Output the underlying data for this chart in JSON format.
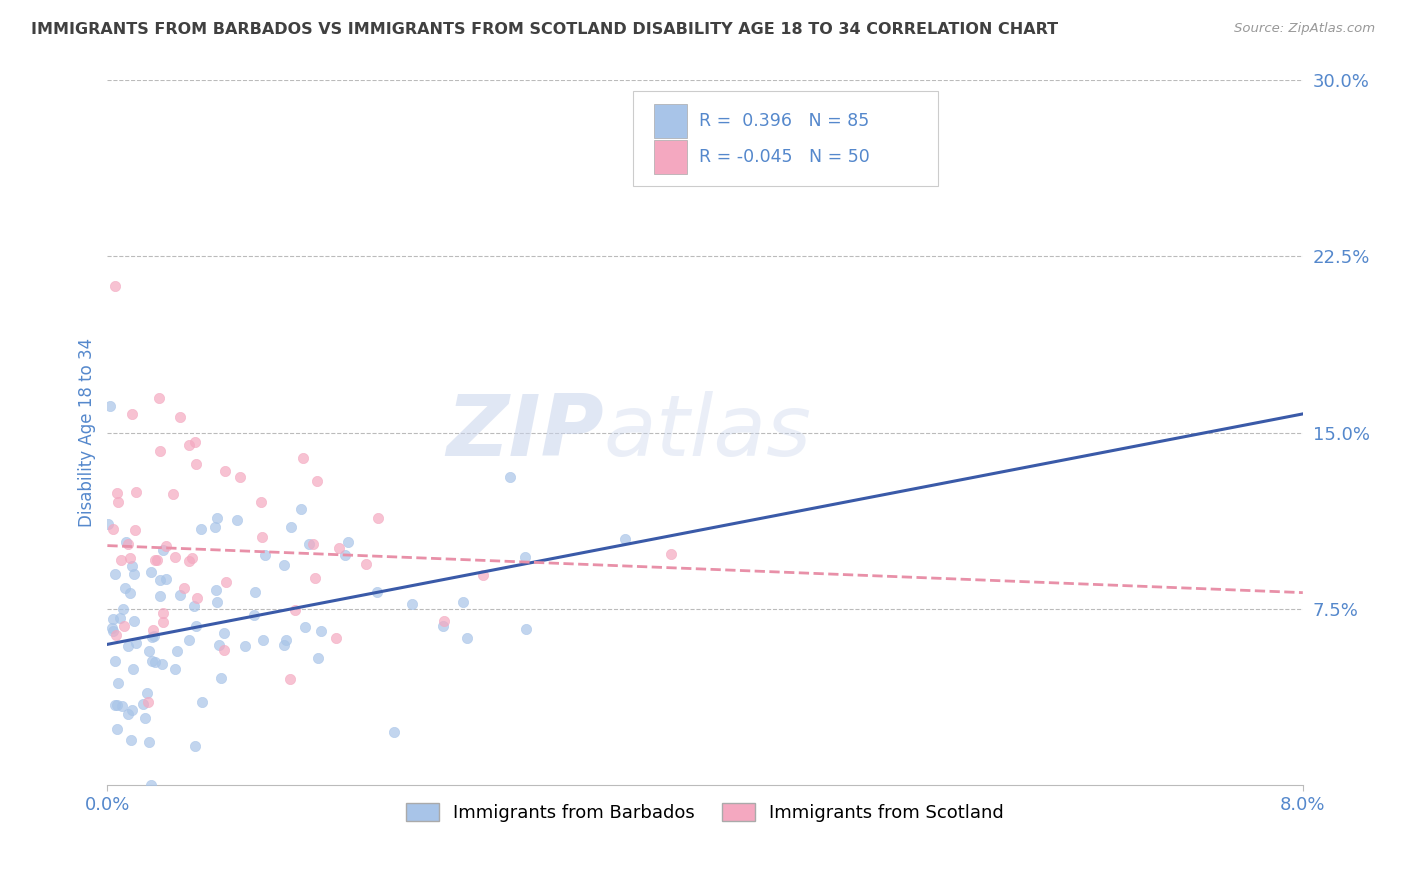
{
  "title": "IMMIGRANTS FROM BARBADOS VS IMMIGRANTS FROM SCOTLAND DISABILITY AGE 18 TO 34 CORRELATION CHART",
  "source": "Source: ZipAtlas.com",
  "ylabel": "Disability Age 18 to 34",
  "xmin": 0.0,
  "xmax": 0.08,
  "ymin": 0.0,
  "ymax": 0.3,
  "ytick_vals": [
    0.075,
    0.15,
    0.225,
    0.3
  ],
  "ytick_labels": [
    "7.5%",
    "15.0%",
    "22.5%",
    "30.0%"
  ],
  "xtick_vals": [
    0.0,
    0.08
  ],
  "xtick_labels": [
    "0.0%",
    "8.0%"
  ],
  "legend_label1": "Immigrants from Barbados",
  "legend_label2": "Immigrants from Scotland",
  "R1": 0.396,
  "N1": 85,
  "R2": -0.045,
  "N2": 50,
  "color_blue": "#A8C4E8",
  "color_pink": "#F4A8C0",
  "trend_color_blue": "#3A5AA8",
  "trend_color_pink": "#E890A8",
  "title_color": "#404040",
  "axis_label_color": "#5588CC",
  "tick_color": "#5588CC",
  "blue_trend_y0": 0.06,
  "blue_trend_y1": 0.158,
  "pink_trend_y0": 0.102,
  "pink_trend_y1": 0.082,
  "seed1": 42,
  "seed2": 77
}
